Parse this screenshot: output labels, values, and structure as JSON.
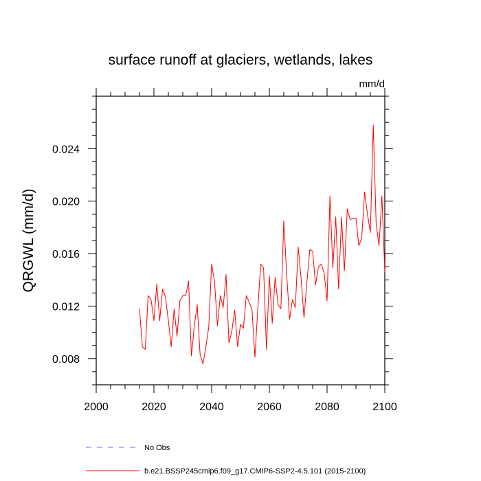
{
  "chart_data": {
    "type": "line",
    "title": "surface runoff at glaciers, wetlands, lakes",
    "units": "mm/d",
    "xlabel": "",
    "ylabel": "QRGWL  (mm/d)",
    "xlim": [
      2000,
      2100
    ],
    "ylim": [
      0.006,
      0.028
    ],
    "x_ticks": [
      2000,
      2020,
      2040,
      2060,
      2080,
      2100
    ],
    "x_tick_labels": [
      "2000",
      "2020",
      "2040",
      "2060",
      "2080",
      "2100"
    ],
    "y_ticks": [
      0.008,
      0.012,
      0.016,
      0.02,
      0.024
    ],
    "y_tick_labels": [
      "0.008",
      "0.012",
      "0.016",
      "0.020",
      "0.024"
    ],
    "grid": false,
    "legend_position": "bottom-left",
    "series": [
      {
        "name": "b.e21.BSSP245cmip6.f09_g17.CMIP6-SSP2-4.5.101 (2015-2100)",
        "color": "#ff0000",
        "style": "solid",
        "x": [
          2015,
          2016,
          2017,
          2018,
          2019,
          2020,
          2021,
          2022,
          2023,
          2024,
          2025,
          2026,
          2027,
          2028,
          2029,
          2030,
          2031,
          2032,
          2033,
          2034,
          2035,
          2036,
          2037,
          2038,
          2039,
          2040,
          2041,
          2042,
          2043,
          2044,
          2045,
          2046,
          2047,
          2048,
          2049,
          2050,
          2051,
          2052,
          2053,
          2054,
          2055,
          2056,
          2057,
          2058,
          2059,
          2060,
          2061,
          2062,
          2063,
          2064,
          2065,
          2066,
          2067,
          2068,
          2069,
          2070,
          2071,
          2072,
          2073,
          2074,
          2075,
          2076,
          2077,
          2078,
          2079,
          2080,
          2081,
          2082,
          2083,
          2084,
          2085,
          2086,
          2087,
          2088,
          2089,
          2090,
          2091,
          2092,
          2093,
          2094,
          2095,
          2096,
          2097,
          2098,
          2099,
          2100
        ],
        "values": [
          0.0118,
          0.0089,
          0.0087,
          0.0128,
          0.0125,
          0.0109,
          0.0137,
          0.0109,
          0.0133,
          0.0127,
          0.0109,
          0.0089,
          0.0118,
          0.0097,
          0.0124,
          0.0128,
          0.0128,
          0.0139,
          0.0082,
          0.0105,
          0.0121,
          0.0083,
          0.0076,
          0.0089,
          0.0104,
          0.0152,
          0.0139,
          0.0105,
          0.0128,
          0.0119,
          0.0144,
          0.0092,
          0.0101,
          0.0117,
          0.0089,
          0.0106,
          0.0103,
          0.0128,
          0.0123,
          0.0117,
          0.0081,
          0.0118,
          0.0152,
          0.0149,
          0.0087,
          0.0143,
          0.0107,
          0.0142,
          0.0121,
          0.0118,
          0.0185,
          0.0144,
          0.011,
          0.0125,
          0.0119,
          0.0165,
          0.0141,
          0.0111,
          0.0138,
          0.0163,
          0.0162,
          0.0136,
          0.015,
          0.0152,
          0.0145,
          0.0124,
          0.0204,
          0.0149,
          0.0188,
          0.0133,
          0.0188,
          0.0147,
          0.0194,
          0.0186,
          0.0187,
          0.0187,
          0.0166,
          0.0172,
          0.0207,
          0.019,
          0.0176,
          0.0258,
          0.0183,
          0.0166,
          0.0204,
          0.0146
        ]
      },
      {
        "name": "No Obs",
        "color": "#6b6bff",
        "style": "dashed",
        "x": [],
        "values": []
      }
    ]
  }
}
